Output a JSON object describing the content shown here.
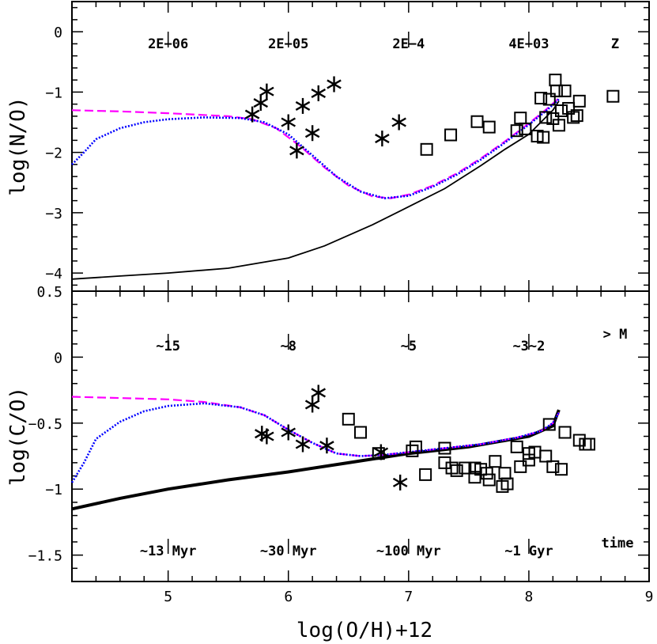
{
  "chart_data": {
    "type": "line",
    "shared_x": {
      "label": "log(O/H)+12",
      "range": [
        4.2,
        9.0
      ],
      "ticks": [
        "5",
        "6",
        "7",
        "8",
        "9"
      ]
    },
    "panels": [
      {
        "id": "top",
        "ylabel": "log(N/O)",
        "ylim": [
          -4.3,
          0.5
        ],
        "yticks": [
          "0",
          "−1",
          "−2",
          "−3",
          "−4"
        ],
        "annotation_label": "Z",
        "annotations": [
          {
            "x": 5.0,
            "text": "2E−06"
          },
          {
            "x": 6.0,
            "text": "2E−05"
          },
          {
            "x": 7.0,
            "text": "2E−4"
          },
          {
            "x": 8.0,
            "text": "4E−03"
          }
        ],
        "series": [
          {
            "style": "black-solid",
            "color": "#000000",
            "points": [
              [
                4.2,
                -4.1
              ],
              [
                4.6,
                -4.05
              ],
              [
                5.0,
                -4.0
              ],
              [
                5.5,
                -3.92
              ],
              [
                6.0,
                -3.75
              ],
              [
                6.3,
                -3.55
              ],
              [
                6.7,
                -3.2
              ],
              [
                7.0,
                -2.9
              ],
              [
                7.3,
                -2.6
              ],
              [
                7.6,
                -2.22
              ],
              [
                7.8,
                -1.95
              ],
              [
                8.0,
                -1.7
              ],
              [
                8.1,
                -1.5
              ],
              [
                8.2,
                -1.3
              ],
              [
                8.25,
                -1.15
              ]
            ]
          },
          {
            "style": "magenta-dashed",
            "color": "#ff00ff",
            "points": [
              [
                4.2,
                -1.3
              ],
              [
                4.6,
                -1.32
              ],
              [
                5.0,
                -1.35
              ],
              [
                5.5,
                -1.4
              ],
              [
                5.7,
                -1.45
              ],
              [
                5.9,
                -1.6
              ],
              [
                6.1,
                -1.9
              ],
              [
                6.3,
                -2.25
              ],
              [
                6.5,
                -2.55
              ],
              [
                6.7,
                -2.73
              ],
              [
                6.85,
                -2.76
              ],
              [
                7.0,
                -2.7
              ],
              [
                7.2,
                -2.55
              ],
              [
                7.4,
                -2.35
              ],
              [
                7.6,
                -2.1
              ],
              [
                7.8,
                -1.82
              ],
              [
                8.0,
                -1.52
              ],
              [
                8.15,
                -1.28
              ],
              [
                8.25,
                -1.1
              ]
            ]
          },
          {
            "style": "blue-dotted",
            "color": "#0000ff",
            "points": [
              [
                4.2,
                -2.2
              ],
              [
                4.3,
                -2.0
              ],
              [
                4.4,
                -1.78
              ],
              [
                4.6,
                -1.6
              ],
              [
                4.8,
                -1.5
              ],
              [
                5.0,
                -1.45
              ],
              [
                5.3,
                -1.42
              ],
              [
                5.6,
                -1.43
              ],
              [
                5.8,
                -1.5
              ],
              [
                6.0,
                -1.7
              ],
              [
                6.2,
                -2.05
              ],
              [
                6.4,
                -2.4
              ],
              [
                6.6,
                -2.65
              ],
              [
                6.8,
                -2.76
              ],
              [
                7.0,
                -2.72
              ],
              [
                7.2,
                -2.57
              ],
              [
                7.4,
                -2.37
              ],
              [
                7.6,
                -2.12
              ],
              [
                7.8,
                -1.84
              ],
              [
                8.0,
                -1.54
              ],
              [
                8.15,
                -1.3
              ],
              [
                8.25,
                -1.12
              ]
            ]
          }
        ],
        "stars": [
          [
            5.7,
            -1.37
          ],
          [
            5.77,
            -1.18
          ],
          [
            5.82,
            -0.99
          ],
          [
            6.0,
            -1.5
          ],
          [
            6.07,
            -1.97
          ],
          [
            6.12,
            -1.23
          ],
          [
            6.2,
            -1.68
          ],
          [
            6.25,
            -1.02
          ],
          [
            6.38,
            -0.87
          ],
          [
            6.78,
            -1.77
          ],
          [
            6.92,
            -1.5
          ]
        ],
        "squares": [
          [
            7.15,
            -1.95
          ],
          [
            7.35,
            -1.71
          ],
          [
            7.57,
            -1.49
          ],
          [
            7.67,
            -1.58
          ],
          [
            7.9,
            -1.64
          ],
          [
            7.93,
            -1.43
          ],
          [
            7.97,
            -1.61
          ],
          [
            8.07,
            -1.73
          ],
          [
            8.12,
            -1.75
          ],
          [
            8.1,
            -1.1
          ],
          [
            8.14,
            -1.42
          ],
          [
            8.17,
            -1.12
          ],
          [
            8.2,
            -1.44
          ],
          [
            8.22,
            -0.8
          ],
          [
            8.23,
            -0.98
          ],
          [
            8.25,
            -1.55
          ],
          [
            8.27,
            -1.31
          ],
          [
            8.3,
            -0.98
          ],
          [
            8.33,
            -1.27
          ],
          [
            8.37,
            -1.42
          ],
          [
            8.4,
            -1.39
          ],
          [
            8.42,
            -1.15
          ],
          [
            8.7,
            -1.07
          ]
        ]
      },
      {
        "id": "bottom",
        "ylabel": "log(C/O)",
        "ylim": [
          -1.7,
          0.5
        ],
        "yticks": [
          "0.5",
          "0",
          "−0.5",
          "−1",
          "−1.5"
        ],
        "annotation_label": "> M",
        "annotations": [
          {
            "x": 5.0,
            "text": "~15"
          },
          {
            "x": 6.0,
            "text": "~8"
          },
          {
            "x": 7.0,
            "text": "~5"
          },
          {
            "x": 8.0,
            "text": "~3~2"
          }
        ],
        "time_label": "time",
        "time_annotations": [
          {
            "x": 5.0,
            "text": "~13 Myr"
          },
          {
            "x": 6.0,
            "text": "~30 Myr"
          },
          {
            "x": 7.0,
            "text": "~100 Myr"
          },
          {
            "x": 8.0,
            "text": "~1 Gyr"
          }
        ],
        "series": [
          {
            "style": "black-thick",
            "color": "#000000",
            "points": [
              [
                4.2,
                -1.15
              ],
              [
                4.6,
                -1.07
              ],
              [
                5.0,
                -1.0
              ],
              [
                5.5,
                -0.93
              ],
              [
                6.0,
                -0.87
              ],
              [
                6.5,
                -0.8
              ],
              [
                7.0,
                -0.73
              ],
              [
                7.5,
                -0.68
              ],
              [
                8.0,
                -0.6
              ],
              [
                8.2,
                -0.52
              ],
              [
                8.25,
                -0.4
              ]
            ]
          },
          {
            "style": "magenta-dashed",
            "color": "#ff00ff",
            "points": [
              [
                4.2,
                -0.3
              ],
              [
                4.6,
                -0.31
              ],
              [
                5.0,
                -0.32
              ],
              [
                5.3,
                -0.34
              ],
              [
                5.6,
                -0.38
              ],
              [
                5.8,
                -0.44
              ],
              [
                6.0,
                -0.55
              ],
              [
                6.2,
                -0.65
              ],
              [
                6.4,
                -0.73
              ],
              [
                6.6,
                -0.75
              ],
              [
                6.8,
                -0.74
              ],
              [
                7.0,
                -0.72
              ],
              [
                7.3,
                -0.69
              ],
              [
                7.6,
                -0.66
              ],
              [
                7.9,
                -0.61
              ],
              [
                8.1,
                -0.56
              ],
              [
                8.2,
                -0.5
              ],
              [
                8.25,
                -0.42
              ]
            ]
          },
          {
            "style": "blue-dotted",
            "color": "#0000ff",
            "points": [
              [
                4.2,
                -0.95
              ],
              [
                4.3,
                -0.8
              ],
              [
                4.4,
                -0.62
              ],
              [
                4.6,
                -0.49
              ],
              [
                4.8,
                -0.41
              ],
              [
                5.0,
                -0.37
              ],
              [
                5.3,
                -0.35
              ],
              [
                5.6,
                -0.38
              ],
              [
                5.8,
                -0.44
              ],
              [
                6.0,
                -0.55
              ],
              [
                6.2,
                -0.65
              ],
              [
                6.4,
                -0.73
              ],
              [
                6.6,
                -0.75
              ],
              [
                6.8,
                -0.74
              ],
              [
                7.0,
                -0.72
              ],
              [
                7.3,
                -0.69
              ],
              [
                7.6,
                -0.66
              ],
              [
                7.9,
                -0.61
              ],
              [
                8.1,
                -0.56
              ],
              [
                8.2,
                -0.5
              ],
              [
                8.25,
                -0.42
              ]
            ]
          }
        ],
        "stars": [
          [
            5.78,
            -0.58
          ],
          [
            5.82,
            -0.6
          ],
          [
            6.0,
            -0.57
          ],
          [
            6.12,
            -0.66
          ],
          [
            6.2,
            -0.36
          ],
          [
            6.25,
            -0.27
          ],
          [
            6.32,
            -0.67
          ],
          [
            6.77,
            -0.72
          ],
          [
            6.93,
            -0.95
          ]
        ],
        "squares": [
          [
            6.5,
            -0.47
          ],
          [
            6.6,
            -0.57
          ],
          [
            6.75,
            -0.73
          ],
          [
            7.03,
            -0.71
          ],
          [
            7.06,
            -0.68
          ],
          [
            7.14,
            -0.89
          ],
          [
            7.3,
            -0.69
          ],
          [
            7.3,
            -0.8
          ],
          [
            7.36,
            -0.84
          ],
          [
            7.4,
            -0.86
          ],
          [
            7.47,
            -0.84
          ],
          [
            7.55,
            -0.84
          ],
          [
            7.55,
            -0.91
          ],
          [
            7.6,
            -0.85
          ],
          [
            7.65,
            -0.88
          ],
          [
            7.67,
            -0.93
          ],
          [
            7.72,
            -0.79
          ],
          [
            7.78,
            -0.98
          ],
          [
            7.8,
            -0.88
          ],
          [
            7.82,
            -0.96
          ],
          [
            7.9,
            -0.68
          ],
          [
            7.93,
            -0.83
          ],
          [
            8.0,
            -0.73
          ],
          [
            8.0,
            -0.78
          ],
          [
            8.05,
            -0.72
          ],
          [
            8.14,
            -0.75
          ],
          [
            8.17,
            -0.51
          ],
          [
            8.2,
            -0.83
          ],
          [
            8.27,
            -0.85
          ],
          [
            8.3,
            -0.57
          ],
          [
            8.42,
            -0.63
          ],
          [
            8.47,
            -0.66
          ],
          [
            8.5,
            -0.66
          ]
        ]
      }
    ]
  }
}
